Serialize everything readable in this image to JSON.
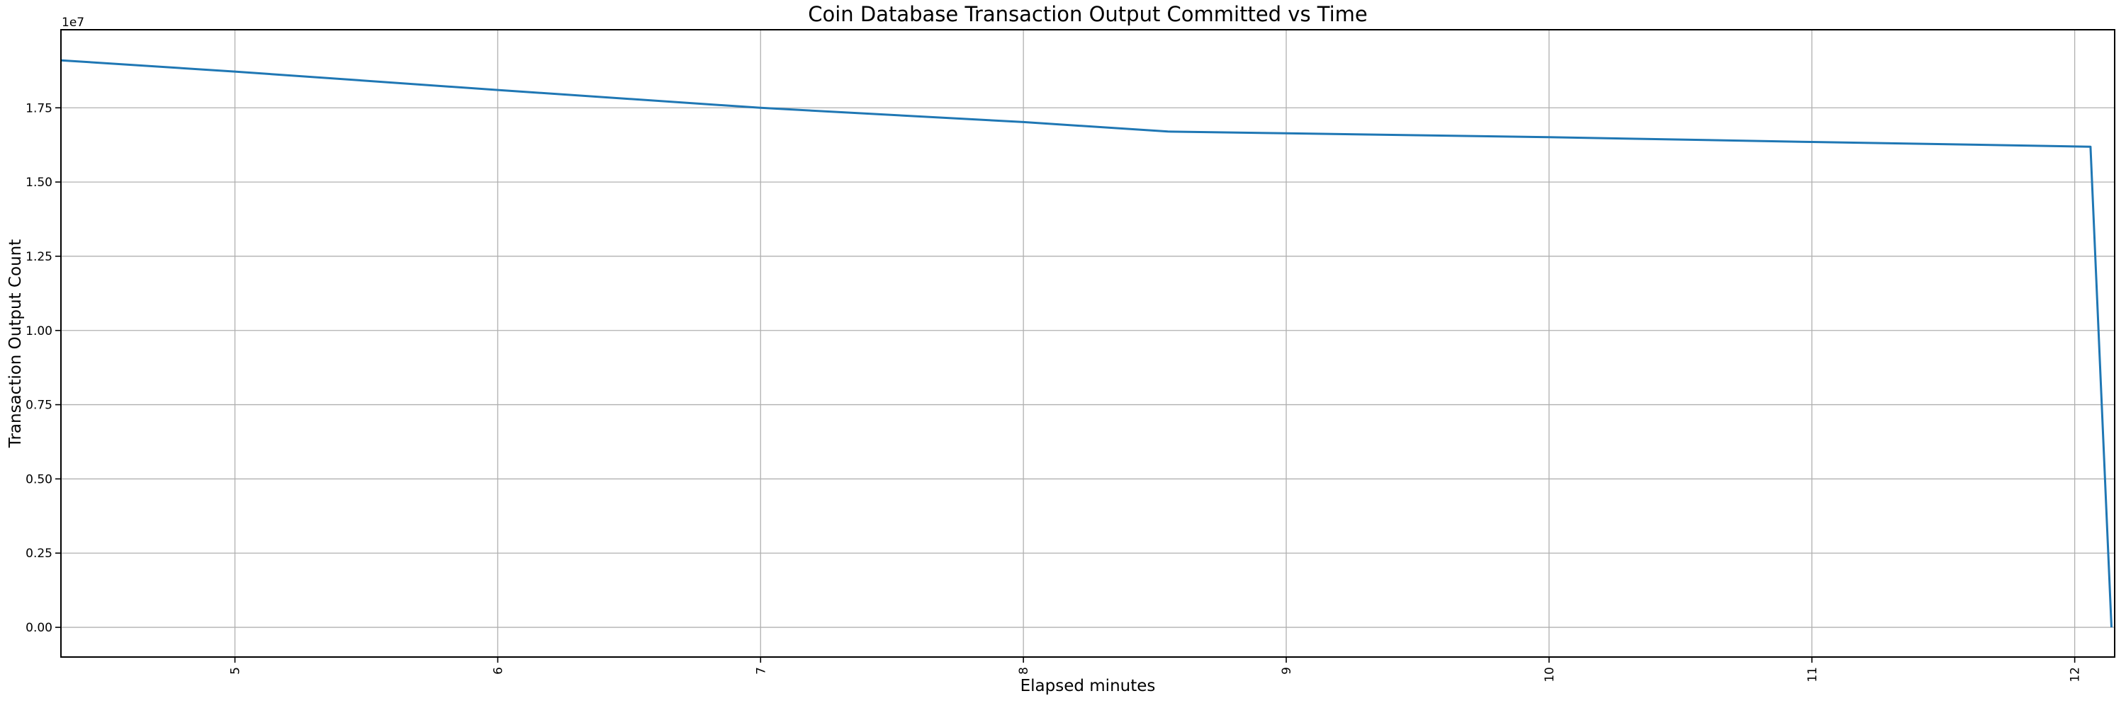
{
  "chart_data": {
    "type": "line",
    "title": "Coin Database Transaction Output Committed vs Time",
    "xlabel": "Elapsed minutes",
    "ylabel": "Transaction Output Count",
    "y_offset_label": "1e7",
    "grid": true,
    "legend_position": "none",
    "xlim": [
      4.338,
      12.152
    ],
    "ylim": [
      -1000000,
      20130000
    ],
    "x_ticks": [
      5,
      6,
      7,
      8,
      9,
      10,
      11,
      12
    ],
    "x_tick_labels": [
      "5",
      "6",
      "7",
      "8",
      "9",
      "10",
      "11",
      "12"
    ],
    "x_tick_rotation": 90,
    "y_ticks": [
      0,
      2500000,
      5000000,
      7500000,
      10000000,
      12500000,
      15000000,
      17500000
    ],
    "y_tick_labels": [
      "0.00",
      "0.25",
      "0.50",
      "0.75",
      "1.00",
      "1.25",
      "1.50",
      "1.75"
    ],
    "series": [
      {
        "name": "transaction-output-count",
        "color": "#1f77b4",
        "points": [
          [
            4.338,
            19100000
          ],
          [
            5.0,
            18720000
          ],
          [
            6.0,
            18100000
          ],
          [
            7.0,
            17500000
          ],
          [
            8.0,
            17020000
          ],
          [
            8.55,
            16700000
          ],
          [
            9.0,
            16640000
          ],
          [
            10.0,
            16510000
          ],
          [
            11.0,
            16350000
          ],
          [
            12.06,
            16190000
          ],
          [
            12.14,
            0
          ]
        ]
      }
    ],
    "colors": {
      "line": "#1f77b4",
      "grid": "#b0b0b0",
      "spine": "#000000",
      "text": "#000000",
      "background": "#ffffff"
    }
  }
}
